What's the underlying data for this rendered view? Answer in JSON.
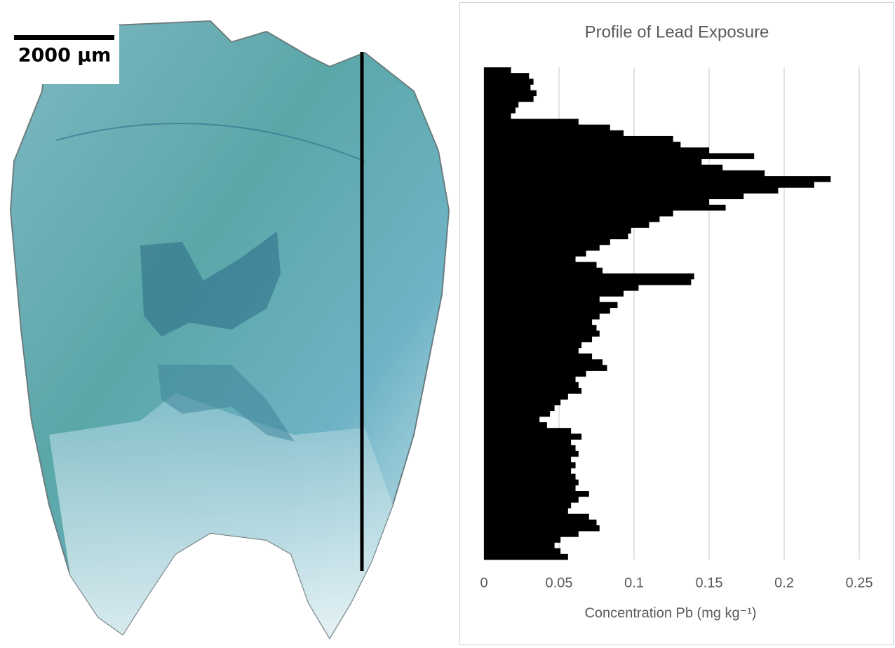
{
  "scale_bar_label": "2000 µm",
  "chart_data": {
    "type": "bar",
    "orientation": "horizontal",
    "title": "Profile of Lead Exposure",
    "x_label": "Concentration Pb (mg kg⁻¹)",
    "color": "#000000",
    "grid": true,
    "xlim": [
      0,
      0.25
    ],
    "xticks": [
      0,
      0.05,
      0.1,
      0.15,
      0.2,
      0.25
    ],
    "values": [
      0.018,
      0.03,
      0.033,
      0.031,
      0.035,
      0.033,
      0.023,
      0.021,
      0.018,
      0.063,
      0.084,
      0.093,
      0.126,
      0.131,
      0.15,
      0.18,
      0.145,
      0.159,
      0.187,
      0.231,
      0.22,
      0.196,
      0.173,
      0.15,
      0.161,
      0.126,
      0.117,
      0.11,
      0.098,
      0.096,
      0.084,
      0.077,
      0.068,
      0.061,
      0.075,
      0.079,
      0.14,
      0.138,
      0.103,
      0.093,
      0.077,
      0.089,
      0.084,
      0.077,
      0.072,
      0.075,
      0.077,
      0.072,
      0.065,
      0.063,
      0.072,
      0.079,
      0.082,
      0.068,
      0.061,
      0.063,
      0.065,
      0.056,
      0.051,
      0.047,
      0.044,
      0.037,
      0.042,
      0.058,
      0.065,
      0.058,
      0.061,
      0.063,
      0.058,
      0.061,
      0.058,
      0.061,
      0.063,
      0.061,
      0.07,
      0.063,
      0.058,
      0.056,
      0.07,
      0.075,
      0.077,
      0.063,
      0.051,
      0.047,
      0.051,
      0.056
    ]
  }
}
